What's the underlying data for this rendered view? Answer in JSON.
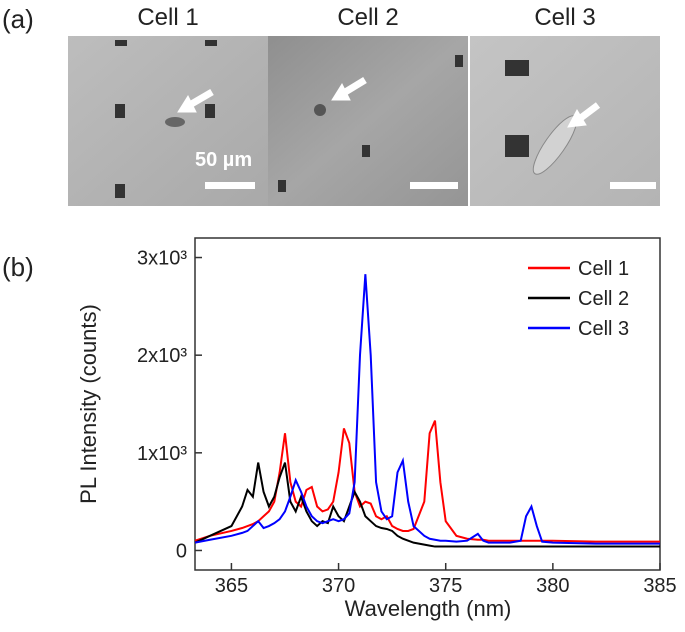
{
  "panel_a": {
    "label": "(a)",
    "cells": [
      "Cell 1",
      "Cell 2",
      "Cell 3"
    ],
    "scale_bar_label": "50 µm"
  },
  "chart_data": {
    "type": "line",
    "panel_label": "(b)",
    "x_label": "Wavelength (nm)",
    "y_label": "PL Intensity (counts)",
    "x": [
      363.3,
      364,
      365,
      365.5,
      365.75,
      366,
      366.25,
      366.5,
      366.75,
      367,
      367.25,
      367.5,
      367.75,
      368,
      368.25,
      368.5,
      368.75,
      369,
      369.25,
      369.5,
      369.75,
      370,
      370.25,
      370.5,
      370.75,
      371,
      371.25,
      371.5,
      371.75,
      372,
      372.25,
      372.5,
      372.75,
      373,
      373.25,
      373.5,
      374,
      374.25,
      374.5,
      374.75,
      375,
      375.5,
      376,
      376.5,
      376.75,
      377,
      378,
      378.5,
      378.75,
      379,
      379.25,
      379.5,
      380,
      382,
      385
    ],
    "series": [
      {
        "name": "Cell 1",
        "color": "#ff0000",
        "values": [
          100,
          150,
          200,
          230,
          250,
          270,
          300,
          350,
          400,
          500,
          800,
          1200,
          700,
          500,
          450,
          620,
          650,
          450,
          400,
          420,
          500,
          800,
          1250,
          1100,
          600,
          450,
          500,
          480,
          350,
          320,
          350,
          250,
          220,
          200,
          200,
          220,
          500,
          1200,
          1330,
          700,
          300,
          150,
          120,
          110,
          110,
          100,
          100,
          100,
          100,
          100,
          100,
          100,
          100,
          90,
          90
        ]
      },
      {
        "name": "Cell 2",
        "color": "#000000",
        "values": [
          80,
          150,
          250,
          450,
          620,
          550,
          900,
          600,
          450,
          550,
          750,
          900,
          500,
          400,
          550,
          400,
          300,
          250,
          300,
          280,
          450,
          350,
          300,
          450,
          600,
          500,
          350,
          300,
          250,
          230,
          220,
          200,
          150,
          120,
          100,
          80,
          60,
          50,
          40,
          40,
          40,
          40,
          40,
          40,
          40,
          40,
          40,
          40,
          40,
          40,
          40,
          40,
          40,
          40,
          40
        ]
      },
      {
        "name": "Cell 3",
        "color": "#0000ff",
        "values": [
          80,
          110,
          150,
          180,
          200,
          250,
          300,
          230,
          250,
          280,
          320,
          400,
          550,
          720,
          600,
          450,
          350,
          300,
          280,
          300,
          320,
          300,
          320,
          380,
          700,
          2000,
          2830,
          2000,
          700,
          400,
          320,
          350,
          800,
          920,
          500,
          250,
          150,
          120,
          110,
          100,
          100,
          90,
          100,
          170,
          100,
          80,
          80,
          100,
          350,
          450,
          250,
          90,
          80,
          70,
          70
        ]
      }
    ],
    "xlim": [
      363.3,
      385
    ],
    "xticks": [
      365,
      370,
      375,
      380,
      385
    ],
    "ylim": [
      -200,
      3200
    ],
    "yticks": [
      0,
      {
        "value": 1000,
        "label": "1x10³"
      },
      {
        "value": 2000,
        "label": "2x10³"
      },
      {
        "value": 3000,
        "label": "3x10³"
      }
    ],
    "legend": "upper right"
  }
}
